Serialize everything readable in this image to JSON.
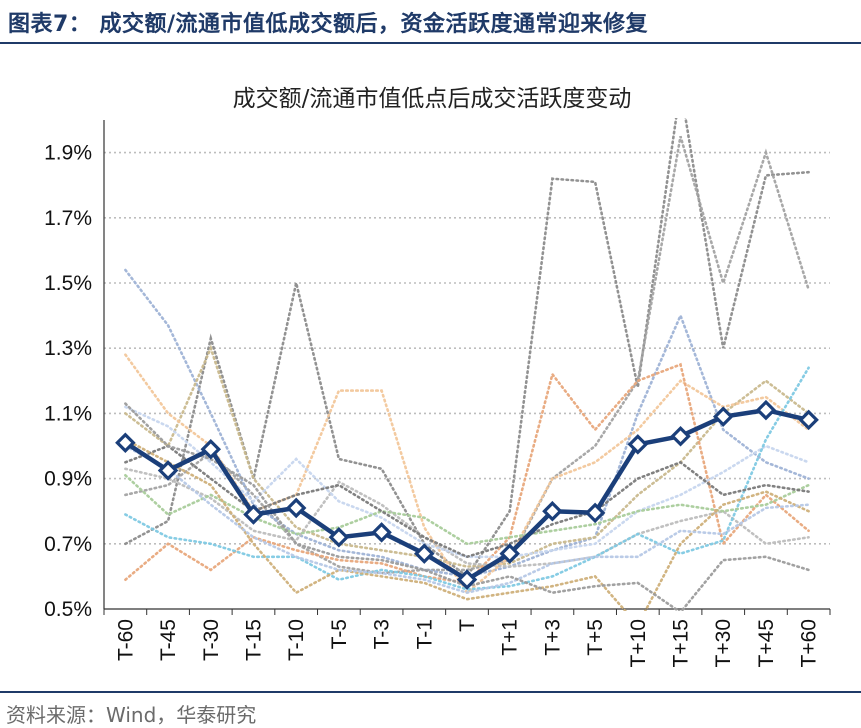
{
  "figure": {
    "title": "图表7：  成交额/流通市值低成交额后，资金活跃度通常迎来修复",
    "source": "资料来源：Wind，华泰研究"
  },
  "colors": {
    "main": "#1b3f7a",
    "brand": "#1f3a68",
    "grid": "#bdbdbd"
  },
  "chart_data": {
    "type": "line",
    "title": "成交额/流通市值低点后成交活跃度变动",
    "xlabel": "",
    "ylabel": "",
    "categories": [
      "T-60",
      "T-45",
      "T-30",
      "T-15",
      "T-10",
      "T-5",
      "T-3",
      "T-1",
      "T",
      "T+1",
      "T+3",
      "T+5",
      "T+10",
      "T+15",
      "T+30",
      "T+45",
      "T+60"
    ],
    "ylim": [
      0.5,
      2.0
    ],
    "yticks": [
      0.5,
      0.7,
      0.9,
      1.1,
      1.3,
      1.5,
      1.7,
      1.9
    ],
    "ytick_labels": [
      "0.5%",
      "0.7%",
      "0.9%",
      "1.1%",
      "1.3%",
      "1.5%",
      "1.7%",
      "1.9%"
    ],
    "grid": true,
    "series": [
      {
        "role": "average",
        "color": "#1b3f7a",
        "marker": "diamond",
        "values": [
          1.01,
          0.925,
          0.99,
          0.79,
          0.81,
          0.72,
          0.735,
          0.67,
          0.59,
          0.67,
          0.8,
          0.795,
          1.005,
          1.03,
          1.09,
          1.11,
          1.08
        ]
      },
      {
        "role": "event",
        "color": "#8c8c8c",
        "values": [
          0.7,
          0.77,
          1.33,
          0.9,
          1.5,
          0.96,
          0.93,
          0.7,
          0.6,
          0.8,
          1.82,
          1.81,
          1.18,
          2.1,
          1.3,
          1.83,
          1.84
        ]
      },
      {
        "role": "event",
        "color": "#a3a3a3",
        "values": [
          0.85,
          0.88,
          0.98,
          0.85,
          0.7,
          0.63,
          0.61,
          0.62,
          0.62,
          0.65,
          0.9,
          1.0,
          1.2,
          1.95,
          1.5,
          1.9,
          1.48
        ]
      },
      {
        "role": "event",
        "color": "#9fb3d6",
        "values": [
          1.54,
          1.37,
          1.1,
          0.82,
          0.73,
          0.68,
          0.66,
          0.62,
          0.6,
          0.63,
          0.68,
          0.72,
          1.1,
          1.4,
          1.05,
          0.95,
          0.9
        ]
      },
      {
        "role": "event",
        "color": "#c9b98e",
        "values": [
          1.1,
          1.0,
          1.3,
          0.9,
          0.75,
          0.7,
          0.68,
          0.66,
          0.63,
          0.64,
          0.7,
          0.72,
          0.85,
          0.95,
          1.1,
          1.2,
          1.1
        ]
      },
      {
        "role": "event",
        "color": "#f2c79b",
        "values": [
          1.28,
          1.1,
          1.0,
          0.8,
          0.85,
          1.17,
          1.17,
          0.75,
          0.55,
          0.66,
          0.9,
          0.95,
          1.05,
          1.2,
          1.12,
          1.15,
          1.05
        ]
      },
      {
        "role": "event",
        "color": "#e8a87c",
        "values": [
          0.59,
          0.7,
          0.62,
          0.72,
          0.68,
          0.65,
          0.64,
          0.6,
          0.58,
          0.72,
          1.22,
          1.05,
          1.2,
          1.25,
          0.7,
          0.85,
          0.74
        ]
      },
      {
        "role": "event",
        "color": "#bdbdbd",
        "values": [
          0.93,
          0.9,
          0.84,
          0.74,
          0.71,
          0.89,
          0.82,
          0.72,
          0.64,
          0.63,
          0.64,
          0.66,
          0.73,
          0.77,
          0.8,
          0.7,
          0.72
        ]
      },
      {
        "role": "event",
        "color": "#c7d6ee",
        "values": [
          1.12,
          1.06,
          0.95,
          0.83,
          0.96,
          0.83,
          0.78,
          0.7,
          0.66,
          0.66,
          0.68,
          0.7,
          0.8,
          0.85,
          0.92,
          1.0,
          0.95
        ]
      },
      {
        "role": "event",
        "color": "#7fc9e3",
        "values": [
          0.79,
          0.72,
          0.7,
          0.66,
          0.66,
          0.59,
          0.62,
          0.6,
          0.56,
          0.57,
          0.6,
          0.66,
          0.73,
          0.67,
          0.71,
          1.02,
          1.24
        ]
      },
      {
        "role": "event",
        "color": "#a9cc9b",
        "values": [
          0.91,
          0.79,
          0.85,
          0.78,
          0.73,
          0.75,
          0.8,
          0.78,
          0.7,
          0.72,
          0.74,
          0.76,
          0.8,
          0.82,
          0.8,
          0.82,
          0.88
        ]
      },
      {
        "role": "event",
        "color": "#7a7a7a",
        "values": [
          0.95,
          1.0,
          0.9,
          0.8,
          0.85,
          0.88,
          0.8,
          0.72,
          0.66,
          0.7,
          0.76,
          0.8,
          0.9,
          0.95,
          0.85,
          0.88,
          0.86
        ]
      },
      {
        "role": "event",
        "color": "#cfb07a",
        "values": [
          1.02,
          0.95,
          0.88,
          0.7,
          0.55,
          0.62,
          0.6,
          0.58,
          0.53,
          0.55,
          0.57,
          0.6,
          0.45,
          0.7,
          0.82,
          0.86,
          0.8
        ]
      },
      {
        "role": "event",
        "color": "#b6c8e6",
        "values": [
          1.0,
          0.93,
          0.82,
          0.72,
          0.66,
          0.62,
          0.61,
          0.59,
          0.55,
          0.58,
          0.64,
          0.66,
          0.66,
          0.74,
          0.73,
          0.81,
          0.82
        ]
      },
      {
        "role": "event",
        "color": "#9c9c9c",
        "values": [
          1.13,
          1.0,
          0.96,
          0.88,
          0.7,
          0.66,
          0.65,
          0.62,
          0.57,
          0.6,
          0.55,
          0.57,
          0.58,
          0.49,
          0.65,
          0.66,
          0.62
        ]
      }
    ]
  }
}
